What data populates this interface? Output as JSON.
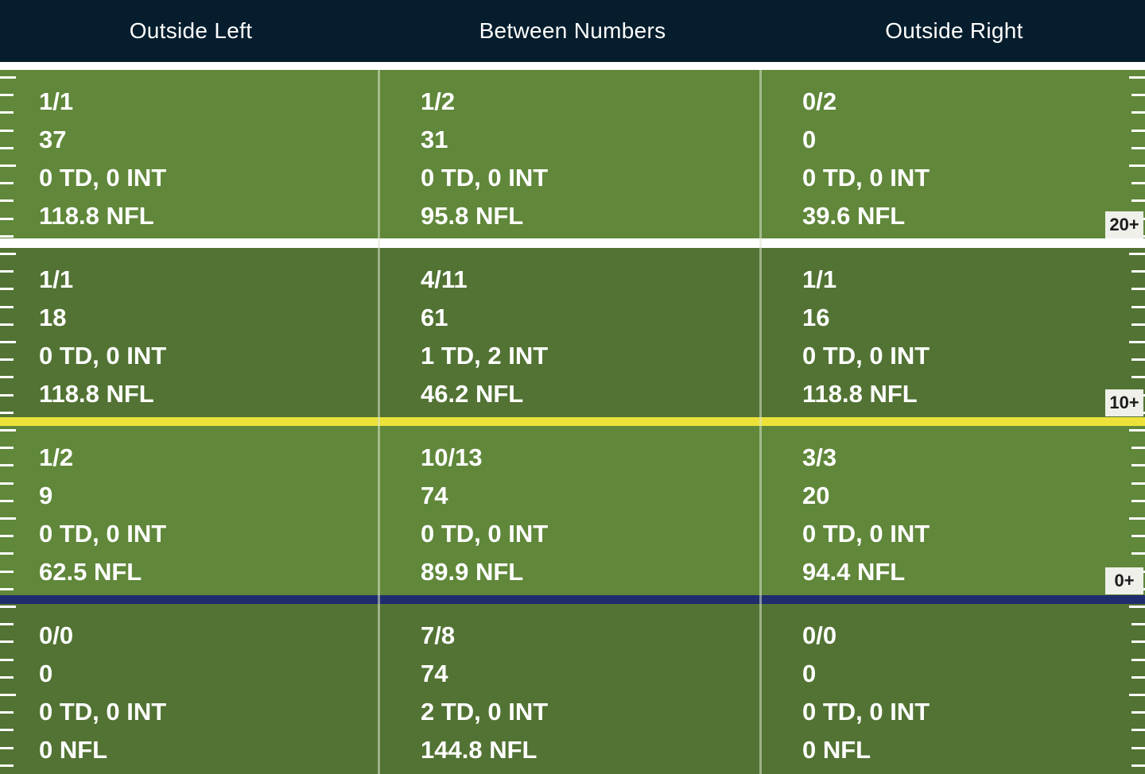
{
  "columns": [
    "Outside Left",
    "Between Numbers",
    "Outside Right"
  ],
  "rows": [
    {
      "marker": "20+",
      "cells": [
        [
          "1/1",
          "37",
          "0 TD, 0 INT",
          "118.8 NFL"
        ],
        [
          "1/2",
          "31",
          "0 TD, 0 INT",
          "95.8 NFL"
        ],
        [
          "0/2",
          "0",
          "0 TD, 0 INT",
          "39.6 NFL"
        ]
      ]
    },
    {
      "marker": "10+",
      "cells": [
        [
          "1/1",
          "18",
          "0 TD, 0 INT",
          "118.8 NFL"
        ],
        [
          "4/11",
          "61",
          "1 TD, 2 INT",
          "46.2 NFL"
        ],
        [
          "1/1",
          "16",
          "0 TD, 0 INT",
          "118.8 NFL"
        ]
      ]
    },
    {
      "marker": "0+",
      "cells": [
        [
          "1/2",
          "9",
          "0 TD, 0 INT",
          "62.5 NFL"
        ],
        [
          "10/13",
          "74",
          "0 TD, 0 INT",
          "89.9 NFL"
        ],
        [
          "3/3",
          "20",
          "0 TD, 0 INT",
          "94.4 NFL"
        ]
      ]
    },
    {
      "marker": "",
      "cells": [
        [
          "0/0",
          "0",
          "0 TD, 0 INT",
          "0 NFL"
        ],
        [
          "7/8",
          "74",
          "2 TD, 0 INT",
          "144.8 NFL"
        ],
        [
          "0/0",
          "0",
          "0 TD, 0 INT",
          "0 NFL"
        ]
      ]
    }
  ],
  "colors": {
    "header_bg": "#051d2c",
    "field_light": "#60873a",
    "field_dark": "#527333",
    "line_of_scrimmage": "#1f2c6d",
    "first_down_line": "#ece23a"
  }
}
